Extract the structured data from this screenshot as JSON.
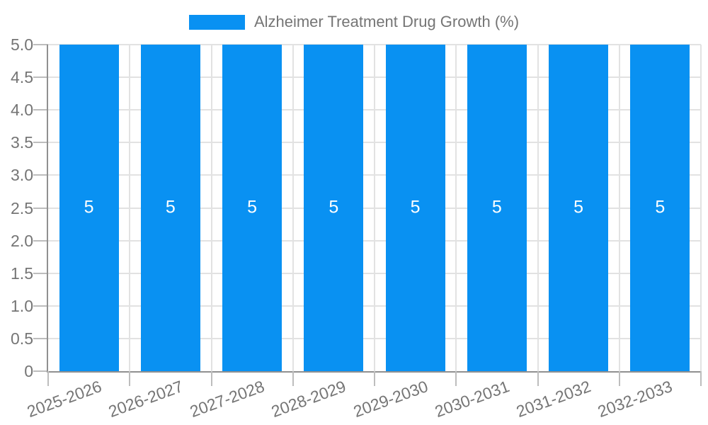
{
  "chart_data": {
    "type": "bar",
    "title": "Alzheimer Treatment Drug Growth (%)",
    "legend": {
      "label": "Alzheimer Treatment Drug Growth (%)",
      "position": "top"
    },
    "categories": [
      "2025-2026",
      "2026-2027",
      "2027-2028",
      "2028-2029",
      "2029-2030",
      "2030-2031",
      "2031-2032",
      "2032-2033"
    ],
    "values": [
      5,
      5,
      5,
      5,
      5,
      5,
      5,
      5
    ],
    "bar_value_labels": [
      "5",
      "5",
      "5",
      "5",
      "5",
      "5",
      "5",
      "5"
    ],
    "xlabel": "",
    "ylabel": "",
    "ylim": [
      0,
      5
    ],
    "y_ticks": [
      {
        "label": "5.0",
        "value": 5.0
      },
      {
        "label": "4.5",
        "value": 4.5
      },
      {
        "label": "4.0",
        "value": 4.0
      },
      {
        "label": "3.5",
        "value": 3.5
      },
      {
        "label": "3.0",
        "value": 3.0
      },
      {
        "label": "2.5",
        "value": 2.5
      },
      {
        "label": "2.0",
        "value": 2.0
      },
      {
        "label": "1.5",
        "value": 1.5
      },
      {
        "label": "1.0",
        "value": 1.0
      },
      {
        "label": "0.5",
        "value": 0.5
      },
      {
        "label": "0",
        "value": 0
      }
    ],
    "grid": true,
    "x_label_rotation_deg": -20,
    "colors": {
      "bar": "#0991F2",
      "bar_label": "#FFFFFF",
      "axis_line": "#909090",
      "grid_line": "#E2E2E2",
      "tick_mark": "#BDBDBD",
      "axis_text": "#757575",
      "legend_text": "#757575",
      "background": "#FFFFFF"
    }
  }
}
